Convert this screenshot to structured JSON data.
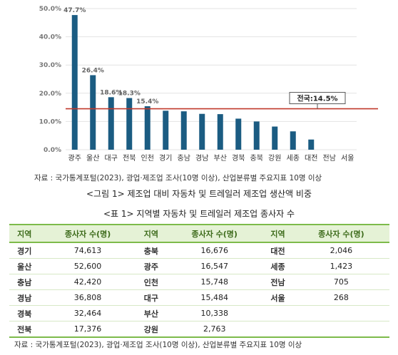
{
  "chart_data": {
    "type": "bar",
    "categories": [
      "광주",
      "울산",
      "대구",
      "전북",
      "인천",
      "경기",
      "충남",
      "경남",
      "부산",
      "경북",
      "충북",
      "강원",
      "세종",
      "대전",
      "전남",
      "서울"
    ],
    "values": [
      47.7,
      26.4,
      18.6,
      18.3,
      15.4,
      13.8,
      13.6,
      12.7,
      12.6,
      11.0,
      10.0,
      8.2,
      6.5,
      3.6,
      0,
      0
    ],
    "data_labels": [
      "47.7%",
      "26.4%",
      "18.6%",
      "18.3%",
      "15.4%",
      "",
      "",
      "",
      "",
      "",
      "",
      "",
      "",
      "",
      "",
      ""
    ],
    "yticks": [
      "0.0%",
      "10.0%",
      "20.0%",
      "30.0%",
      "40.0%",
      "50.0%"
    ],
    "ylim": [
      0,
      50
    ],
    "reference_line": {
      "label": "전국:14.5%",
      "value": 14.5,
      "color": "#c0392b"
    },
    "bar_color": "#1b5c82",
    "grid": true,
    "title": "",
    "xlabel": "",
    "ylabel": ""
  },
  "source_note": "자료 : 국가통계포털(2023), 광업·제조업 조사(10명 이상), 산업분류별 주요지표 10명 이상",
  "figure_caption": "<그림 1> 제조업 대비 자동차 및 트레일러 제조업 생산액 비중",
  "table_caption": "<표 1> 지역별 자동차 및 트레일러 제조업 종사자 수",
  "table": {
    "headers": [
      "지역",
      "종사자 수(명)",
      "지역",
      "종사자 수(명)",
      "지역",
      "종사자 수(명)"
    ],
    "rows": [
      [
        "경기",
        "74,613",
        "충북",
        "16,676",
        "대전",
        "2,046"
      ],
      [
        "울산",
        "52,600",
        "광주",
        "16,547",
        "세종",
        "1,423"
      ],
      [
        "충남",
        "42,420",
        "인천",
        "15,748",
        "전남",
        "705"
      ],
      [
        "경남",
        "36,808",
        "대구",
        "15,484",
        "서울",
        "268"
      ],
      [
        "경북",
        "32,464",
        "부산",
        "10,338",
        "",
        ""
      ],
      [
        "전북",
        "17,376",
        "강원",
        "2,763",
        "",
        ""
      ]
    ]
  },
  "table_source_note": "자료 : 국가통계포털(2023), 광업·제조업 조사(10명 이상), 산업분류별 주요지표 10명 이상"
}
